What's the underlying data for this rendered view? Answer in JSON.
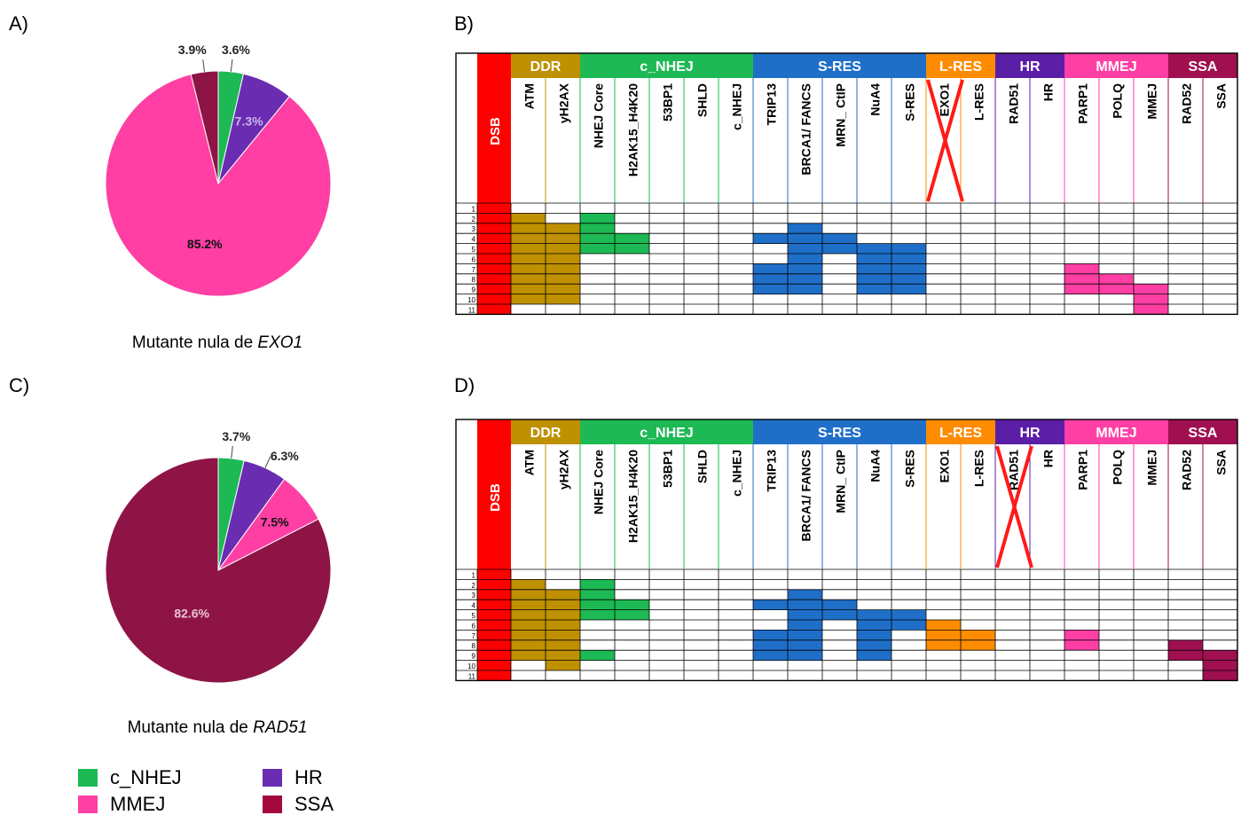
{
  "panels": {
    "A": {
      "letter": "A)",
      "caption_prefix": "Mutante nula de ",
      "caption_gene": "EXO1"
    },
    "B": {
      "letter": "B)"
    },
    "C": {
      "letter": "C)",
      "caption_prefix": "Mutante nula de ",
      "caption_gene": "RAD51"
    },
    "D": {
      "letter": "D)"
    }
  },
  "legend": [
    {
      "label": "c_NHEJ",
      "color": "#1db954"
    },
    {
      "label": "HR",
      "color": "#6a2db2"
    },
    {
      "label": "MMEJ",
      "color": "#ff3fa4"
    },
    {
      "label": "SSA",
      "color": "#a4083f"
    }
  ],
  "chart_data": [
    {
      "type": "pie",
      "panel": "A",
      "slices": [
        {
          "label": "c_NHEJ",
          "value": 3.6,
          "text": "3.6%",
          "color": "#1db954"
        },
        {
          "label": "HR",
          "value": 7.3,
          "text": "7.3%",
          "color": "#6a2db2"
        },
        {
          "label": "MMEJ",
          "value": 85.2,
          "text": "85.2%",
          "color": "#ff3fa4"
        },
        {
          "label": "SSA",
          "value": 3.9,
          "text": "3.9%",
          "color": "#8e1446"
        }
      ]
    },
    {
      "type": "pie",
      "panel": "C",
      "slices": [
        {
          "label": "c_NHEJ",
          "value": 3.7,
          "text": "3.7%",
          "color": "#1db954"
        },
        {
          "label": "HR",
          "value": 6.3,
          "text": "6.3%",
          "color": "#6a2db2"
        },
        {
          "label": "MMEJ",
          "value": 7.5,
          "text": "7.5%",
          "color": "#ff3fa4"
        },
        {
          "label": "SSA",
          "value": 82.6,
          "text": "82.6%",
          "color": "#8e1446"
        }
      ]
    },
    {
      "type": "table",
      "panel": "B",
      "corner_label": "DSB",
      "corner_color": "#ff0000",
      "groups": [
        {
          "label": "DDR",
          "span": 2,
          "color": "#bf9000"
        },
        {
          "label": "c_NHEJ",
          "span": 5,
          "color": "#1db954"
        },
        {
          "label": "S-RES",
          "span": 5,
          "color": "#1f6fc9"
        },
        {
          "label": "L-RES",
          "span": 2,
          "color": "#ff8c00"
        },
        {
          "label": "HR",
          "span": 2,
          "color": "#5b1ea6"
        },
        {
          "label": "MMEJ",
          "span": 3,
          "color": "#ff3fa4"
        },
        {
          "label": "SSA",
          "span": 2,
          "color": "#a01050"
        }
      ],
      "columns": [
        "ATM",
        "yH2AX",
        "NHEJ Core",
        "H2AK15_H4K20",
        "53BP1",
        "SHLD",
        "c_NHEJ",
        "TRIP13",
        "BRCA1/ FANCS",
        "MRN_ CtIP",
        "NuA4",
        "S-RES",
        "EXO1",
        "L-RES",
        "RAD51",
        "HR",
        "PARP1",
        "POLQ",
        "MMEJ",
        "RAD52",
        "SSA"
      ],
      "crossed_column": "EXO1",
      "rows": [
        "1",
        "2",
        "3",
        "4",
        "5",
        "6",
        "7",
        "8",
        "9",
        "10",
        "11"
      ],
      "filled": {
        "ATM": [
          2,
          3,
          4,
          5,
          6,
          7,
          8,
          9,
          10
        ],
        "yH2AX": [
          3,
          4,
          5,
          6,
          7,
          8,
          9,
          10
        ],
        "NHEJ Core": [
          2,
          3,
          4,
          5
        ],
        "H2AK15_H4K20": [
          4,
          5
        ],
        "TRIP13": [
          4,
          7,
          8,
          9
        ],
        "BRCA1/ FANCS": [
          3,
          4,
          5,
          6,
          7,
          8,
          9
        ],
        "MRN_ CtIP": [
          4,
          5
        ],
        "NuA4": [
          5,
          6,
          7,
          8,
          9
        ],
        "S-RES": [
          5,
          6,
          7,
          8,
          9
        ],
        "PARP1": [
          7,
          8,
          9
        ],
        "POLQ": [
          8,
          9
        ],
        "MMEJ": [
          9,
          10,
          11
        ]
      }
    },
    {
      "type": "table",
      "panel": "D",
      "corner_label": "DSB",
      "corner_color": "#ff0000",
      "groups": [
        {
          "label": "DDR",
          "span": 2,
          "color": "#bf9000"
        },
        {
          "label": "c_NHEJ",
          "span": 5,
          "color": "#1db954"
        },
        {
          "label": "S-RES",
          "span": 5,
          "color": "#1f6fc9"
        },
        {
          "label": "L-RES",
          "span": 2,
          "color": "#ff8c00"
        },
        {
          "label": "HR",
          "span": 2,
          "color": "#5b1ea6"
        },
        {
          "label": "MMEJ",
          "span": 3,
          "color": "#ff3fa4"
        },
        {
          "label": "SSA",
          "span": 2,
          "color": "#a01050"
        }
      ],
      "columns": [
        "ATM",
        "yH2AX",
        "NHEJ Core",
        "H2AK15_H4K20",
        "53BP1",
        "SHLD",
        "c_NHEJ",
        "TRIP13",
        "BRCA1/ FANCS",
        "MRN_ CtIP",
        "NuA4",
        "S-RES",
        "EXO1",
        "L-RES",
        "RAD51",
        "HR",
        "PARP1",
        "POLQ",
        "MMEJ",
        "RAD52",
        "SSA"
      ],
      "crossed_column": "RAD51",
      "rows": [
        "1",
        "2",
        "3",
        "4",
        "5",
        "6",
        "7",
        "8",
        "9",
        "10",
        "11"
      ],
      "filled": {
        "ATM": [
          2,
          3,
          4,
          5,
          6,
          7,
          8,
          9
        ],
        "yH2AX": [
          3,
          4,
          5,
          6,
          7,
          8,
          9,
          10
        ],
        "NHEJ Core": [
          2,
          3,
          4,
          5,
          9
        ],
        "H2AK15_H4K20": [
          4,
          5
        ],
        "TRIP13": [
          4,
          7,
          8,
          9
        ],
        "BRCA1/ FANCS": [
          3,
          4,
          5,
          6,
          7,
          8,
          9
        ],
        "MRN_ CtIP": [
          4,
          5
        ],
        "NuA4": [
          5,
          6,
          7,
          8,
          9
        ],
        "S-RES": [
          5,
          6
        ],
        "EXO1": [
          6,
          7,
          8
        ],
        "L-RES": [
          7,
          8
        ],
        "PARP1": [
          7,
          8
        ],
        "RAD52": [
          8,
          9
        ],
        "SSA": [
          9,
          10,
          11
        ]
      }
    }
  ]
}
